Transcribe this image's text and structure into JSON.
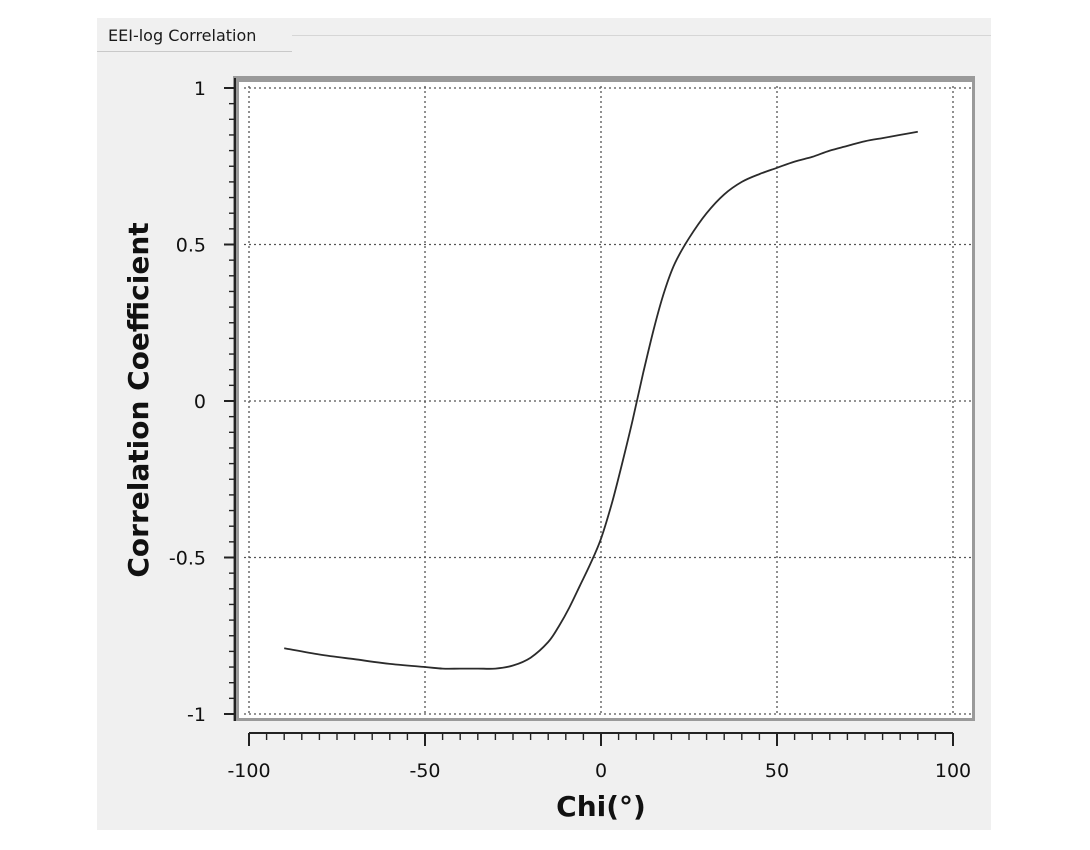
{
  "window": {
    "title": "EEI-log Correlation"
  },
  "colors": {
    "panel_background": "#f0f0f0",
    "plot_background": "#ffffff",
    "curve": "#2b2b2b",
    "grid": "#555555",
    "axis": "#222222"
  },
  "chart_data": {
    "type": "line",
    "title": "",
    "xlabel": "Chi(°)",
    "ylabel": "Correlation Coefficient",
    "xlim": [
      -100,
      100
    ],
    "ylim": [
      -1,
      1
    ],
    "x_ticks": [
      -100,
      -50,
      0,
      50,
      100
    ],
    "x_tick_labels": [
      "-100",
      "-50",
      "0",
      "50",
      "100"
    ],
    "y_ticks": [
      1,
      0.5,
      0,
      -0.5,
      -1
    ],
    "y_tick_labels": [
      "1",
      "0.5",
      "0",
      "-0.5",
      "-1"
    ],
    "grid": true,
    "grid_style": "dotted",
    "series": [
      {
        "x": [
          -90,
          -80,
          -70,
          -60,
          -50,
          -45,
          -40,
          -35,
          -30,
          -25,
          -20,
          -15,
          -12,
          -9,
          -6,
          -3,
          0,
          3,
          6,
          9,
          12,
          15,
          18,
          21,
          25,
          30,
          35,
          40,
          45,
          50,
          55,
          60,
          65,
          70,
          75,
          80,
          85,
          90
        ],
        "y": [
          -0.79,
          -0.81,
          -0.825,
          -0.84,
          -0.85,
          -0.855,
          -0.855,
          -0.855,
          -0.855,
          -0.845,
          -0.82,
          -0.77,
          -0.72,
          -0.66,
          -0.59,
          -0.52,
          -0.44,
          -0.33,
          -0.2,
          -0.06,
          0.09,
          0.23,
          0.35,
          0.44,
          0.52,
          0.6,
          0.66,
          0.7,
          0.725,
          0.745,
          0.765,
          0.78,
          0.8,
          0.815,
          0.83,
          0.84,
          0.85,
          0.86
        ]
      }
    ]
  }
}
